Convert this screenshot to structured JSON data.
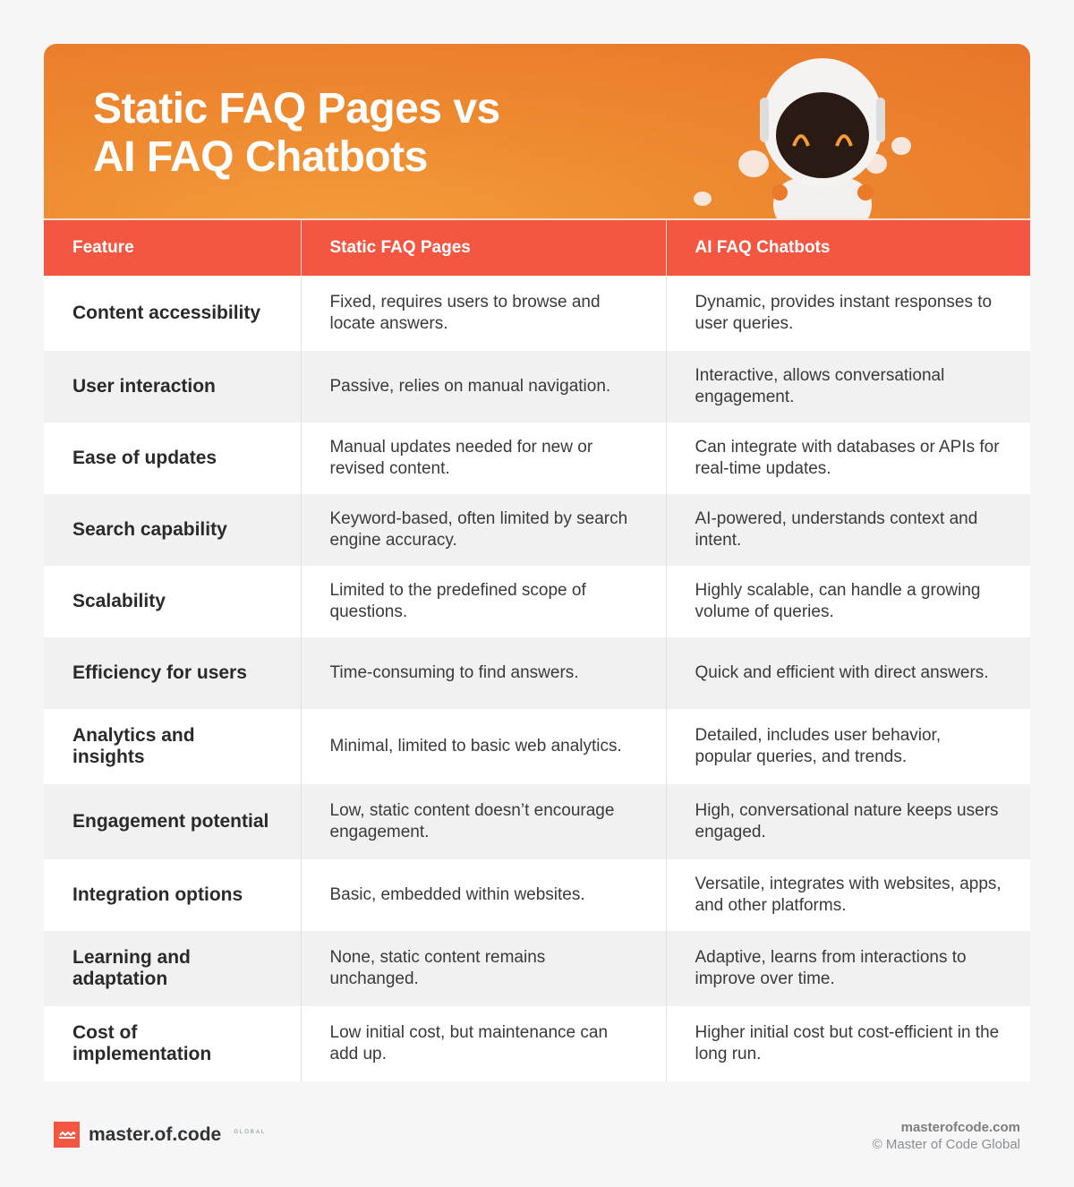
{
  "title_line1": "Static FAQ Pages vs",
  "title_line2": "AI FAQ Chatbots",
  "colors": {
    "accent": "#f35641",
    "hero": "#ee8a30"
  },
  "table": {
    "headers": [
      "Feature",
      "Static FAQ Pages",
      "AI FAQ Chatbots"
    ],
    "rows": [
      [
        "Content accessibility",
        "Fixed, requires users to browse and locate answers.",
        "Dynamic, provides instant responses to user queries."
      ],
      [
        "User interaction",
        "Passive, relies on manual navigation.",
        "Interactive, allows conversational engagement."
      ],
      [
        "Ease of updates",
        "Manual updates needed for new or revised content.",
        "Can integrate with databases or APIs for real-time updates."
      ],
      [
        "Search capability",
        "Keyword-based, often limited by search engine accuracy.",
        "AI-powered, understands context and intent."
      ],
      [
        "Scalability",
        "Limited to the predefined scope of questions.",
        "Highly scalable, can handle a growing volume of queries."
      ],
      [
        "Efficiency for users",
        "Time-consuming to find answers.",
        "Quick and efficient with direct answers."
      ],
      [
        "Analytics and insights",
        "Minimal, limited to basic web analytics.",
        "Detailed, includes user behavior, popular queries, and trends."
      ],
      [
        "Engagement potential",
        "Low, static content doesn’t encourage engagement.",
        "High, conversational nature keeps users engaged."
      ],
      [
        "Integration options",
        "Basic, embedded within websites.",
        "Versatile, integrates with websites, apps, and other platforms."
      ],
      [
        "Learning and adaptation",
        "None, static content remains unchanged.",
        "Adaptive, learns from interactions to improve over time."
      ],
      [
        "Cost of implementation",
        "Low initial cost, but maintenance can add up.",
        "Higher initial cost but cost-efficient in the long run."
      ]
    ]
  },
  "footer": {
    "logo": "master.of.code",
    "logo_sub": "GLOBAL",
    "site": "masterofcode.com",
    "copyright": "© Master of Code Global"
  }
}
